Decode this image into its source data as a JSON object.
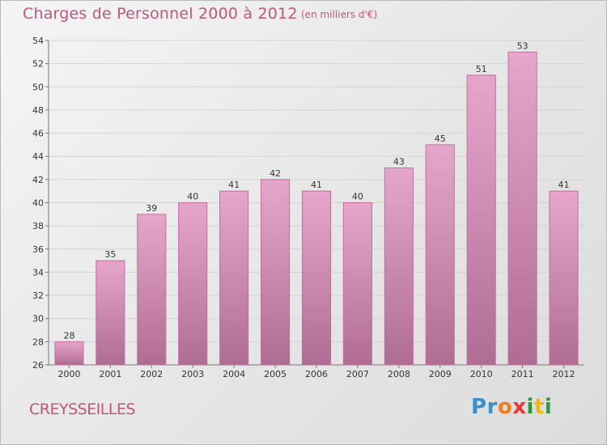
{
  "title": "Charges de Personnel 2000 à 2012",
  "subtitle": "(en milliers d'€)",
  "commune": "CREYSSEILLES",
  "logo": {
    "letters": [
      "P",
      "r",
      "o",
      "x",
      "i",
      "t",
      "i"
    ],
    "colors": [
      "#3a8fd0",
      "#3a8fd0",
      "#f07c1c",
      "#e7383c",
      "#2a9a3e",
      "#f0b616",
      "#2a9a3e"
    ]
  },
  "colors": {
    "bar_light": "#e6a6cc",
    "bar_dark": "#b06d94",
    "bar_edge": "#c26f9b",
    "accent": "#c0567f"
  },
  "chart_data": {
    "type": "bar",
    "categories": [
      "2000",
      "2001",
      "2002",
      "2003",
      "2004",
      "2005",
      "2006",
      "2007",
      "2008",
      "2009",
      "2010",
      "2011",
      "2012"
    ],
    "values": [
      28,
      35,
      39,
      40,
      41,
      42,
      41,
      40,
      43,
      45,
      51,
      53,
      41
    ],
    "ylim": [
      26,
      54
    ],
    "yticks": [
      26,
      28,
      30,
      32,
      34,
      36,
      38,
      40,
      42,
      44,
      46,
      48,
      50,
      52,
      54
    ],
    "grid": true
  }
}
